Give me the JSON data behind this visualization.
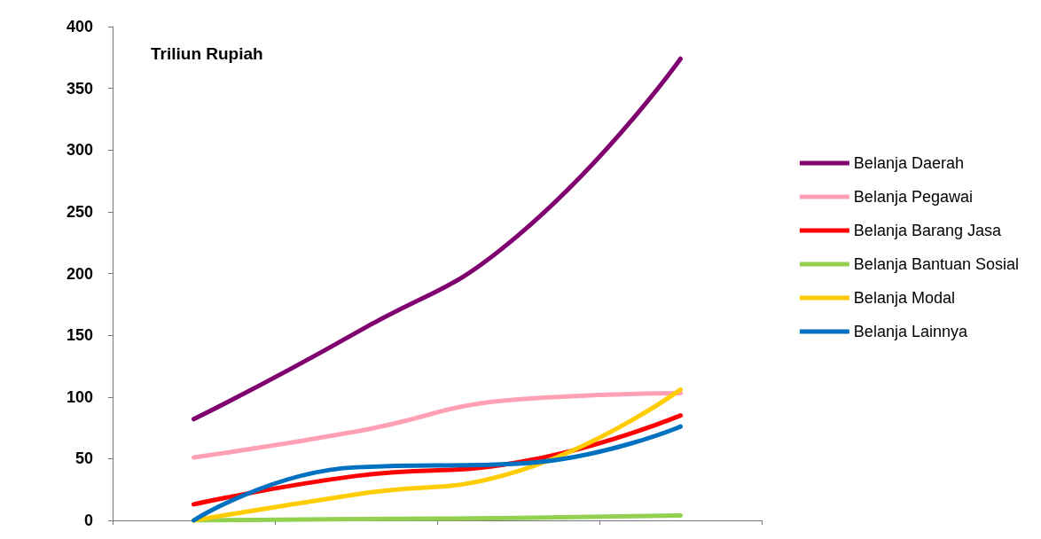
{
  "chart_data": {
    "type": "line",
    "ylabel": "Triliun Rupiah",
    "categories": [
      null,
      null,
      null,
      null
    ],
    "series": [
      {
        "name": "Belanja Daerah",
        "color": "#800070",
        "values": [
          82,
          152,
          231,
          374
        ]
      },
      {
        "name": "Belanja Pegawai",
        "color": "#ffa0b4",
        "values": [
          51,
          72,
          98,
          103
        ]
      },
      {
        "name": "Belanja Barang Jasa",
        "color": "#ff0000",
        "values": [
          13,
          36,
          47,
          85
        ]
      },
      {
        "name": "Belanja Bantuan Sosial",
        "color": "#92d050",
        "values": [
          0,
          1,
          2,
          4
        ]
      },
      {
        "name": "Belanja Modal",
        "color": "#ffcc00",
        "values": [
          0,
          21,
          40,
          106
        ]
      },
      {
        "name": "Belanja Lainnya",
        "color": "#0070c0",
        "values": [
          0,
          43,
          46,
          76
        ]
      }
    ],
    "ylim": [
      0,
      400
    ],
    "yticks": [
      0,
      50,
      100,
      150,
      200,
      250,
      300,
      350,
      400
    ],
    "grid": false,
    "legend": "right",
    "marker": "none",
    "line_style": "solid"
  }
}
